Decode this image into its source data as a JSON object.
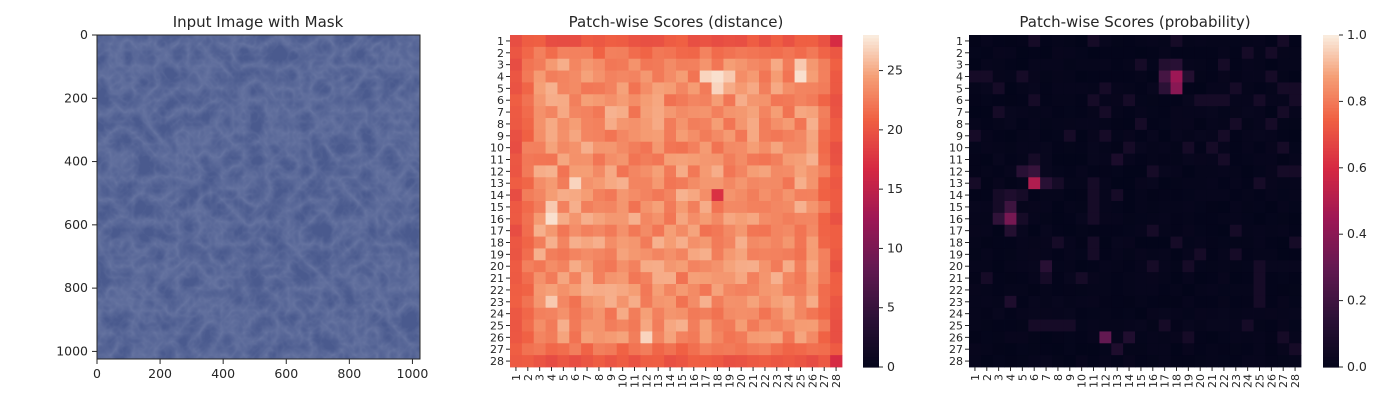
{
  "chart_data": [
    {
      "type": "image",
      "title": "Input Image with Mask",
      "image_description": "blue leather texture",
      "image_color": "#4a5a8e",
      "xlim": [
        0,
        1024
      ],
      "ylim": [
        1024,
        0
      ],
      "xticks": [
        "0",
        "200",
        "400",
        "600",
        "800",
        "1000"
      ],
      "yticks": [
        "0",
        "200",
        "400",
        "600",
        "800",
        "1000"
      ]
    },
    {
      "type": "heatmap",
      "title": "Patch-wise Scores (distance)",
      "rows": 28,
      "cols": 28,
      "row_labels": [
        "1",
        "2",
        "3",
        "4",
        "5",
        "6",
        "7",
        "8",
        "9",
        "10",
        "11",
        "12",
        "13",
        "14",
        "15",
        "16",
        "17",
        "18",
        "19",
        "20",
        "21",
        "22",
        "23",
        "24",
        "25",
        "26",
        "27",
        "28"
      ],
      "col_labels": [
        "1",
        "2",
        "3",
        "4",
        "5",
        "6",
        "7",
        "8",
        "9",
        "10",
        "11",
        "12",
        "13",
        "14",
        "15",
        "16",
        "17",
        "18",
        "19",
        "20",
        "21",
        "22",
        "23",
        "24",
        "25",
        "26",
        "27",
        "28"
      ],
      "vmin": 0,
      "vmax": 28,
      "colorbar_ticks": [
        "0",
        "5",
        "10",
        "15",
        "20",
        "25"
      ],
      "border_value": 19.5,
      "interior_base": 23.5,
      "hotspots": [
        {
          "row": 4,
          "col": 18,
          "value": 27.5
        },
        {
          "row": 4,
          "col": 17,
          "value": 27
        },
        {
          "row": 5,
          "col": 18,
          "value": 27
        },
        {
          "row": 4,
          "col": 19,
          "value": 26.5
        },
        {
          "row": 4,
          "col": 25,
          "value": 27.5
        },
        {
          "row": 3,
          "col": 25,
          "value": 26.5
        },
        {
          "row": 16,
          "col": 4,
          "value": 27.5
        },
        {
          "row": 15,
          "col": 4,
          "value": 26.5
        },
        {
          "row": 13,
          "col": 6,
          "value": 27
        },
        {
          "row": 26,
          "col": 12,
          "value": 27
        },
        {
          "row": 23,
          "col": 4,
          "value": 26.5
        }
      ],
      "coldspots": [
        {
          "row": 14,
          "col": 18,
          "value": 17.5
        },
        {
          "row": 1,
          "col": 28,
          "value": 17
        },
        {
          "row": 28,
          "col": 28,
          "value": 17
        }
      ]
    },
    {
      "type": "heatmap",
      "title": "Patch-wise Scores (probability)",
      "rows": 28,
      "cols": 28,
      "row_labels": [
        "1",
        "2",
        "3",
        "4",
        "5",
        "6",
        "7",
        "8",
        "9",
        "10",
        "11",
        "12",
        "13",
        "14",
        "15",
        "16",
        "17",
        "18",
        "19",
        "20",
        "21",
        "22",
        "23",
        "24",
        "25",
        "26",
        "27",
        "28"
      ],
      "col_labels": [
        "1",
        "2",
        "3",
        "4",
        "5",
        "6",
        "7",
        "8",
        "9",
        "10",
        "11",
        "12",
        "13",
        "14",
        "15",
        "16",
        "17",
        "18",
        "19",
        "20",
        "21",
        "22",
        "23",
        "24",
        "25",
        "26",
        "27",
        "28"
      ],
      "vmin": 0,
      "vmax": 1,
      "colorbar_ticks": [
        "0.0",
        "0.2",
        "0.4",
        "0.6",
        "0.8",
        "1.0"
      ],
      "background_value": 0.02,
      "hotspots": [
        {
          "row": 4,
          "col": 18,
          "value": 0.45
        },
        {
          "row": 5,
          "col": 18,
          "value": 0.4
        },
        {
          "row": 4,
          "col": 17,
          "value": 0.22
        },
        {
          "row": 3,
          "col": 17,
          "value": 0.12
        },
        {
          "row": 3,
          "col": 18,
          "value": 0.14
        },
        {
          "row": 5,
          "col": 17,
          "value": 0.15
        },
        {
          "row": 4,
          "col": 19,
          "value": 0.12
        },
        {
          "row": 13,
          "col": 6,
          "value": 0.5
        },
        {
          "row": 12,
          "col": 6,
          "value": 0.18
        },
        {
          "row": 12,
          "col": 5,
          "value": 0.14
        },
        {
          "row": 13,
          "col": 7,
          "value": 0.14
        },
        {
          "row": 16,
          "col": 4,
          "value": 0.35
        },
        {
          "row": 15,
          "col": 4,
          "value": 0.2
        },
        {
          "row": 16,
          "col": 3,
          "value": 0.16
        },
        {
          "row": 17,
          "col": 4,
          "value": 0.12
        },
        {
          "row": 26,
          "col": 12,
          "value": 0.3
        },
        {
          "row": 20,
          "col": 7,
          "value": 0.14
        },
        {
          "row": 23,
          "col": 4,
          "value": 0.1
        },
        {
          "row": 14,
          "col": 4,
          "value": 0.1
        },
        {
          "row": 11,
          "col": 13,
          "value": 0.09
        },
        {
          "row": 26,
          "col": 14,
          "value": 0.11
        },
        {
          "row": 27,
          "col": 13,
          "value": 0.1
        }
      ]
    }
  ]
}
